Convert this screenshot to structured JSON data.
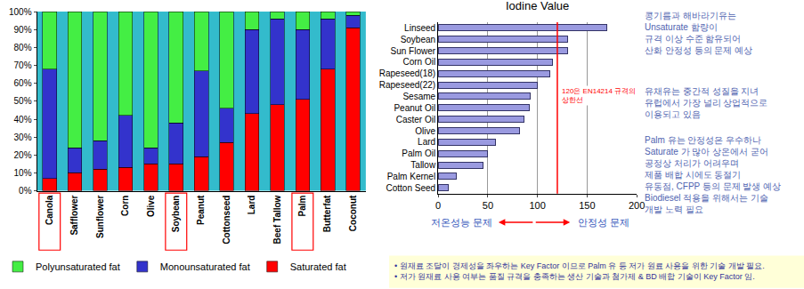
{
  "chart_data": [
    {
      "type": "bar",
      "stacked": true,
      "categories": [
        "Canola",
        "Safflower",
        "Sunflower",
        "Corn",
        "Olive",
        "Soybean",
        "Peanut",
        "Cottonseed",
        "Lard",
        "Beef Tallow",
        "Palm",
        "Butterfat",
        "Coconut"
      ],
      "series": [
        {
          "name": "Saturated fat",
          "color": "#ff0000",
          "values": [
            7,
            10,
            12,
            13,
            15,
            15,
            19,
            27,
            43,
            48,
            51,
            68,
            91
          ]
        },
        {
          "name": "Monounsaturated fat",
          "color": "#3333cc",
          "values": [
            61,
            14,
            16,
            29,
            9,
            23,
            48,
            19,
            47,
            48,
            39,
            28,
            7
          ]
        },
        {
          "name": "Polyunsaturated fat",
          "color": "#44ee44",
          "values": [
            32,
            76,
            72,
            58,
            76,
            62,
            33,
            54,
            10,
            4,
            10,
            4,
            2
          ]
        }
      ],
      "ylim": [
        0,
        100
      ],
      "yticks": [
        {
          "value": 0,
          "label": "0%"
        },
        {
          "value": 10,
          "label": "10%"
        },
        {
          "value": 20,
          "label": "20%"
        },
        {
          "value": 30,
          "label": "30%"
        },
        {
          "value": 40,
          "label": "40%"
        },
        {
          "value": 50,
          "label": "50%"
        },
        {
          "value": 60,
          "label": "60%"
        },
        {
          "value": 70,
          "label": "70%"
        },
        {
          "value": 80,
          "label": "80%"
        },
        {
          "value": 90,
          "label": "90%"
        },
        {
          "value": 100,
          "label": "100%"
        }
      ],
      "grid": false,
      "legend": "bottom",
      "highlighted": [
        "Canola",
        "Soybean",
        "Palm"
      ]
    },
    {
      "type": "bar",
      "orientation": "horizontal",
      "title": "Iodine Value",
      "categories": [
        "Linseed",
        "Soybean",
        "Sun Flower",
        "Corn Oil",
        "Rapeseed(18)",
        "Rapeseed(22)",
        "Sesame",
        "Peanut Oil",
        "Caster Oil",
        "Olive",
        "Lard",
        "Palm Oil",
        "Tallow",
        "Palm Kernel",
        "Cotton Seed"
      ],
      "values": [
        170,
        130,
        130,
        115,
        112,
        100,
        93,
        92,
        86,
        82,
        58,
        50,
        45,
        18,
        10
      ],
      "color": "#9a9ae0",
      "xlim": [
        0,
        200
      ],
      "xticks": [
        0,
        50,
        100,
        150,
        200
      ],
      "grid": true,
      "reference_line": {
        "value": 120,
        "label": [
          "120은 EN14214 규격의",
          "상한선"
        ]
      },
      "arrow_labels": [
        "저온성능 문제",
        "안정성 문제"
      ]
    }
  ],
  "side_notes": [
    [
      "콩기름과 해바라기유는",
      "Unsaturate 함량이",
      "규격 이상 수준 함유되어",
      "산화 안정성 등의 문제 예상"
    ],
    [
      "유채유는 중간적 성질을 지녀",
      "유럽에서 가장 널리 상업적으로",
      "이용되고 있음"
    ],
    [
      "Palm 유는 안정성은 우수하나",
      "Saturate 가 많아 상온에서 굳어",
      "공정상 처리가 어려우며",
      "제품 배합 시에도 동절기",
      "유동점, CFPP 등의 문제 발생 예상",
      "Biodiesel 적용을 위해서는 기술",
      "개발 노력 필요"
    ]
  ],
  "footnotes": [
    "• 원재료 조달이 경제성을 좌우하는 Key Factor 이므로 Palm 유 등 저가 원료 사용을 위한 기술 개발 필요.",
    "• 저가 원재료 사용 여부는 품질 규격을 충족하는 생산 기술과 첨가제 & BD 배합 기술이 Key Factor 임."
  ]
}
